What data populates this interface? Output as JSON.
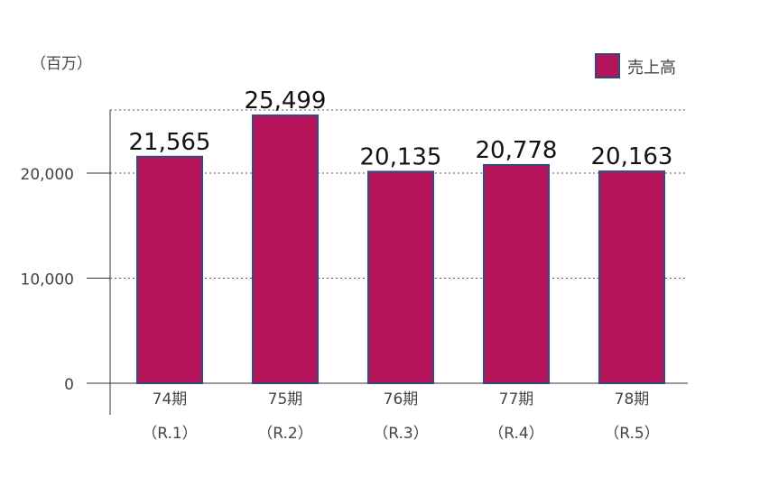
{
  "chart_data": {
    "type": "bar",
    "unit_label": "（百万）",
    "categories": [
      {
        "period": "74期",
        "era": "（R.1）"
      },
      {
        "period": "75期",
        "era": "（R.2）"
      },
      {
        "period": "76期",
        "era": "（R.3）"
      },
      {
        "period": "77期",
        "era": "（R.4）"
      },
      {
        "period": "78期",
        "era": "（R.5）"
      }
    ],
    "series": [
      {
        "name": "売上高",
        "color": "#B5145A",
        "edge_color": "#2F4A80",
        "values": [
          21565,
          25499,
          20135,
          20778,
          20163
        ],
        "labels": [
          "21,565",
          "25,499",
          "20,135",
          "20,778",
          "20,163"
        ]
      }
    ],
    "ylim": [
      0,
      26000
    ],
    "yticks": [
      0,
      10000,
      20000
    ],
    "ytick_labels": [
      "0",
      "10,000",
      "20,000"
    ],
    "grid": "dotted horizontal",
    "legend_position": "top-right"
  }
}
